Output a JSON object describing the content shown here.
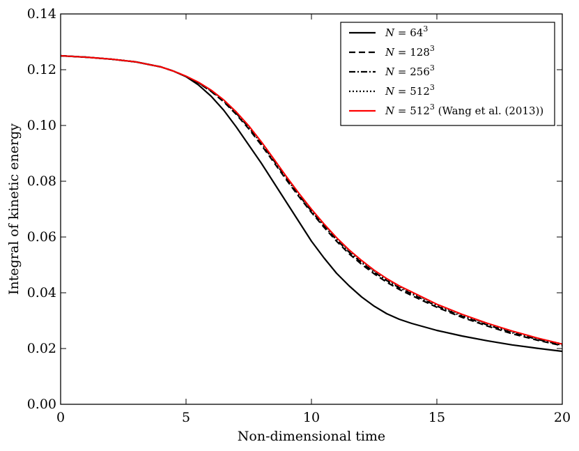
{
  "chart_data": {
    "type": "line",
    "title": "",
    "xlabel": "Non-dimensional time",
    "ylabel": "Integral of kinetic energy",
    "xlim": [
      0,
      20
    ],
    "ylim": [
      0,
      0.14
    ],
    "xticks": [
      0,
      5,
      10,
      15,
      20
    ],
    "xtick_labels": [
      "0",
      "5",
      "10",
      "15",
      "20"
    ],
    "yticks": [
      0,
      0.02,
      0.04,
      0.06,
      0.08,
      0.1,
      0.12,
      0.14
    ],
    "ytick_labels": [
      "0.00",
      "0.02",
      "0.04",
      "0.06",
      "0.08",
      "0.10",
      "0.12",
      "0.14"
    ],
    "grid": false,
    "legend_position": "top-right",
    "x": [
      0,
      1,
      2,
      3,
      4,
      4.5,
      5,
      5.5,
      6,
      6.5,
      7,
      7.5,
      8,
      8.5,
      9,
      9.5,
      10,
      10.5,
      11,
      11.5,
      12,
      12.5,
      13,
      13.5,
      14,
      15,
      16,
      17,
      18,
      19,
      20
    ],
    "series": [
      {
        "name": "N = 64^3",
        "legend_var": "N",
        "legend_base": " = 64",
        "legend_sup": "3",
        "legend_suffix": "",
        "color": "#000000",
        "dash": "",
        "values": [
          0.125,
          0.1245,
          0.1238,
          0.1228,
          0.121,
          0.1195,
          0.1175,
          0.1145,
          0.1105,
          0.1055,
          0.0995,
          0.093,
          0.0865,
          0.0795,
          0.0725,
          0.0655,
          0.0585,
          0.0525,
          0.047,
          0.0425,
          0.0385,
          0.0352,
          0.0325,
          0.0305,
          0.029,
          0.0265,
          0.0245,
          0.0228,
          0.0213,
          0.0201,
          0.019
        ]
      },
      {
        "name": "N = 128^3",
        "legend_var": "N",
        "legend_base": " = 128",
        "legend_sup": "3",
        "legend_suffix": "",
        "color": "#000000",
        "dash": "9,5",
        "values": [
          0.125,
          0.1245,
          0.1238,
          0.1228,
          0.121,
          0.1195,
          0.1176,
          0.1152,
          0.1122,
          0.1085,
          0.104,
          0.0988,
          0.093,
          0.0868,
          0.0805,
          0.0745,
          0.0688,
          0.0635,
          0.0585,
          0.054,
          0.0502,
          0.0468,
          0.0438,
          0.0412,
          0.039,
          0.0348,
          0.0312,
          0.0281,
          0.0253,
          0.023,
          0.021
        ]
      },
      {
        "name": "N = 256^3",
        "legend_var": "N",
        "legend_base": " = 256",
        "legend_sup": "3",
        "legend_suffix": "",
        "color": "#000000",
        "dash": "9,3,2,3",
        "values": [
          0.125,
          0.1245,
          0.1238,
          0.1228,
          0.121,
          0.1195,
          0.1176,
          0.1153,
          0.1124,
          0.1088,
          0.1044,
          0.0993,
          0.0936,
          0.0874,
          0.0811,
          0.075,
          0.0693,
          0.064,
          0.059,
          0.0546,
          0.0508,
          0.0474,
          0.0444,
          0.0418,
          0.0396,
          0.0352,
          0.0316,
          0.0285,
          0.0257,
          0.0233,
          0.0212
        ]
      },
      {
        "name": "N = 512^3",
        "legend_var": "N",
        "legend_base": " = 512",
        "legend_sup": "3",
        "legend_suffix": "",
        "color": "#000000",
        "dash": "2,3",
        "values": [
          0.125,
          0.1245,
          0.1238,
          0.1228,
          0.121,
          0.1195,
          0.1176,
          0.1154,
          0.1126,
          0.1091,
          0.1048,
          0.0998,
          0.0941,
          0.0879,
          0.0816,
          0.0755,
          0.0698,
          0.0645,
          0.0596,
          0.0552,
          0.0514,
          0.0479,
          0.0449,
          0.0423,
          0.0401,
          0.0357,
          0.0321,
          0.0289,
          0.0261,
          0.0237,
          0.0216
        ]
      },
      {
        "name": "N = 512^3 (Wang et al. (2013))",
        "legend_var": "N",
        "legend_base": " = 512",
        "legend_sup": "3",
        "legend_suffix": " (Wang et al. (2013))",
        "color": "#ff0000",
        "dash": "",
        "values": [
          0.125,
          0.1245,
          0.1238,
          0.1228,
          0.121,
          0.1195,
          0.1177,
          0.1155,
          0.1127,
          0.1092,
          0.1049,
          0.0999,
          0.0942,
          0.088,
          0.0817,
          0.0757,
          0.07,
          0.0647,
          0.0598,
          0.0554,
          0.0516,
          0.0481,
          0.0451,
          0.0425,
          0.0403,
          0.0359,
          0.0323,
          0.0291,
          0.0263,
          0.0238,
          0.0216
        ]
      }
    ]
  }
}
